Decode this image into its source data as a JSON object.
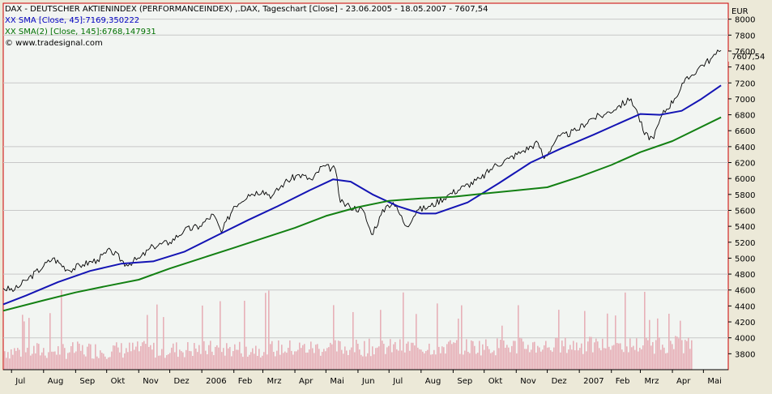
{
  "header": {
    "title": "DAX  - DEUTSCHER AKTIENINDEX (PERFORMANCEINDEX) ,.DAX, Tageschart [Close] - 23.06.2005 - 18.05.2007 - 7607,54",
    "sma1_label": "XX SMA [Close, 45]:7169,350222",
    "sma2_label": "XX SMA(2) [Close, 145]:6768,147931",
    "copyright": "© www.tradesignal.com"
  },
  "colors": {
    "price": "#000000",
    "sma45": "#1414b4",
    "sma145": "#138013",
    "volume": "#e7b0b8",
    "volume_edge": "#c8c8c8",
    "plot_bg": "#f2f5f2",
    "frame": "#cc0000"
  },
  "chart_data": {
    "type": "line",
    "title": "DAX  - DEUTSCHER AKTIENINDEX (PERFORMANCEINDEX) ,.DAX, Tageschart [Close] - 23.06.2005 - 18.05.2007 - 7607,54",
    "y_unit": "EUR",
    "ylim": [
      3600,
      8200
    ],
    "y_ticks": [
      3800,
      4000,
      4200,
      4400,
      4600,
      4800,
      5000,
      5200,
      5400,
      5600,
      5800,
      6000,
      6200,
      6400,
      6600,
      6800,
      7000,
      7200,
      7400,
      7600,
      7800,
      8000
    ],
    "last_value_label": "7607,54",
    "x_ticks": [
      "Jul",
      "Aug",
      "Sep",
      "Okt",
      "Nov",
      "Dez",
      "2006",
      "Feb",
      "Mrz",
      "Apr",
      "Mai",
      "Jun",
      "Jul",
      "Aug",
      "Sep",
      "Okt",
      "Nov",
      "Dez",
      "2007",
      "Feb",
      "Mrz",
      "Apr",
      "Mai"
    ],
    "x_tick_dates": [
      "2005-07-01",
      "2005-08-01",
      "2005-09-01",
      "2005-10-01",
      "2005-11-01",
      "2005-12-01",
      "2006-01-01",
      "2006-02-01",
      "2006-03-01",
      "2006-04-01",
      "2006-05-01",
      "2006-06-01",
      "2006-07-01",
      "2006-08-01",
      "2006-09-01",
      "2006-10-01",
      "2006-11-01",
      "2006-12-01",
      "2007-01-01",
      "2007-02-01",
      "2007-03-01",
      "2007-04-01",
      "2007-05-01"
    ],
    "gridlines": "horizontal",
    "series": [
      {
        "name": "DAX",
        "points": [
          [
            "2005-06-23",
            4620
          ],
          [
            "2005-07-04",
            4600
          ],
          [
            "2005-07-15",
            4720
          ],
          [
            "2005-08-01",
            4900
          ],
          [
            "2005-08-10",
            5000
          ],
          [
            "2005-08-25",
            4850
          ],
          [
            "2005-09-08",
            4920
          ],
          [
            "2005-09-22",
            4980
          ],
          [
            "2005-10-05",
            5100
          ],
          [
            "2005-10-20",
            4920
          ],
          [
            "2005-11-02",
            5000
          ],
          [
            "2005-11-15",
            5150
          ],
          [
            "2005-12-01",
            5200
          ],
          [
            "2005-12-15",
            5350
          ],
          [
            "2005-12-30",
            5400
          ],
          [
            "2006-01-12",
            5550
          ],
          [
            "2006-01-20",
            5320
          ],
          [
            "2006-02-01",
            5650
          ],
          [
            "2006-02-15",
            5800
          ],
          [
            "2006-03-01",
            5850
          ],
          [
            "2006-03-10",
            5780
          ],
          [
            "2006-03-22",
            5950
          ],
          [
            "2006-04-05",
            6050
          ],
          [
            "2006-04-18",
            5980
          ],
          [
            "2006-04-27",
            6150
          ],
          [
            "2006-05-10",
            6120
          ],
          [
            "2006-05-15",
            5700
          ],
          [
            "2006-05-24",
            5650
          ],
          [
            "2006-06-06",
            5600
          ],
          [
            "2006-06-14",
            5300
          ],
          [
            "2006-06-28",
            5650
          ],
          [
            "2006-07-05",
            5700
          ],
          [
            "2006-07-18",
            5400
          ],
          [
            "2006-07-28",
            5600
          ],
          [
            "2006-08-10",
            5650
          ],
          [
            "2006-08-28",
            5800
          ],
          [
            "2006-09-12",
            5900
          ],
          [
            "2006-09-28",
            6000
          ],
          [
            "2006-10-10",
            6150
          ],
          [
            "2006-10-25",
            6250
          ],
          [
            "2006-11-08",
            6350
          ],
          [
            "2006-11-22",
            6450
          ],
          [
            "2006-11-28",
            6250
          ],
          [
            "2006-12-10",
            6500
          ],
          [
            "2006-12-29",
            6600
          ],
          [
            "2007-01-12",
            6750
          ],
          [
            "2007-01-25",
            6800
          ],
          [
            "2007-02-07",
            6900
          ],
          [
            "2007-02-20",
            7000
          ],
          [
            "2007-02-27",
            6800
          ],
          [
            "2007-03-05",
            6550
          ],
          [
            "2007-03-14",
            6500
          ],
          [
            "2007-03-22",
            6800
          ],
          [
            "2007-04-03",
            7000
          ],
          [
            "2007-04-12",
            7200
          ],
          [
            "2007-04-20",
            7300
          ],
          [
            "2007-04-27",
            7400
          ],
          [
            "2007-05-08",
            7500
          ],
          [
            "2007-05-18",
            7607.54
          ]
        ]
      },
      {
        "name": "XX SMA [Close, 45]",
        "points": [
          [
            "2005-06-23",
            4420
          ],
          [
            "2005-07-15",
            4530
          ],
          [
            "2005-08-15",
            4700
          ],
          [
            "2005-09-15",
            4840
          ],
          [
            "2005-10-15",
            4930
          ],
          [
            "2005-11-15",
            4960
          ],
          [
            "2005-12-15",
            5080
          ],
          [
            "2006-01-15",
            5280
          ],
          [
            "2006-02-15",
            5480
          ],
          [
            "2006-03-15",
            5650
          ],
          [
            "2006-04-15",
            5850
          ],
          [
            "2006-05-08",
            5990
          ],
          [
            "2006-05-25",
            5960
          ],
          [
            "2006-06-15",
            5800
          ],
          [
            "2006-07-10",
            5650
          ],
          [
            "2006-08-01",
            5560
          ],
          [
            "2006-08-15",
            5560
          ],
          [
            "2006-09-15",
            5700
          ],
          [
            "2006-10-15",
            5940
          ],
          [
            "2006-11-15",
            6200
          ],
          [
            "2006-12-15",
            6380
          ],
          [
            "2007-01-15",
            6550
          ],
          [
            "2007-02-15",
            6730
          ],
          [
            "2007-03-01",
            6810
          ],
          [
            "2007-03-20",
            6800
          ],
          [
            "2007-04-10",
            6850
          ],
          [
            "2007-04-28",
            6990
          ],
          [
            "2007-05-18",
            7169.35
          ]
        ]
      },
      {
        "name": "XX SMA(2) [Close, 145]",
        "points": [
          [
            "2005-06-23",
            4340
          ],
          [
            "2005-08-01",
            4470
          ],
          [
            "2005-09-01",
            4570
          ],
          [
            "2005-10-01",
            4650
          ],
          [
            "2005-11-01",
            4730
          ],
          [
            "2005-12-01",
            4870
          ],
          [
            "2006-01-01",
            5000
          ],
          [
            "2006-02-01",
            5130
          ],
          [
            "2006-03-01",
            5250
          ],
          [
            "2006-04-01",
            5380
          ],
          [
            "2006-05-01",
            5530
          ],
          [
            "2006-06-01",
            5640
          ],
          [
            "2006-07-01",
            5720
          ],
          [
            "2006-08-01",
            5750
          ],
          [
            "2006-09-01",
            5770
          ],
          [
            "2006-10-01",
            5810
          ],
          [
            "2006-11-01",
            5850
          ],
          [
            "2006-12-01",
            5890
          ],
          [
            "2007-01-01",
            6020
          ],
          [
            "2007-02-01",
            6170
          ],
          [
            "2007-03-01",
            6330
          ],
          [
            "2007-04-01",
            6470
          ],
          [
            "2007-05-18",
            6768.15
          ]
        ]
      }
    ]
  }
}
